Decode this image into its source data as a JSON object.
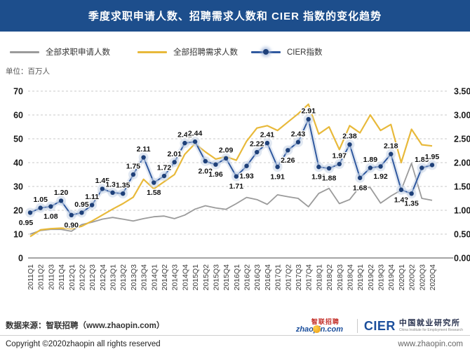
{
  "header": {
    "title": "季度求职申请人数、招聘需求人数和 CIER 指数的变化趋势"
  },
  "legend": [
    {
      "label": "全部求职申请人数",
      "color": "#9b9b9b"
    },
    {
      "label": "全部招聘需求人数",
      "color": "#e8b93a"
    },
    {
      "label": "CIER指数",
      "color": "#30599f",
      "dot_color": "#1e4079"
    }
  ],
  "unit_label": "单位：百万人",
  "chart_data": {
    "type": "line",
    "title": "季度求职申请人数、招聘需求人数和 CIER 指数的变化趋势",
    "categories": [
      "2011Q1",
      "2011Q2",
      "2011Q3",
      "2011Q4",
      "2012Q1",
      "2012Q2",
      "2012Q3",
      "2012Q4",
      "2013Q1",
      "2013Q2",
      "2013Q3",
      "2013Q4",
      "2014Q1",
      "2014Q2",
      "2014Q3",
      "2014Q4",
      "2015Q1",
      "2015Q2",
      "2015Q3",
      "2015Q4",
      "2016Q1",
      "2016Q2",
      "2016Q3",
      "2016Q4",
      "2017Q1",
      "2017Q2",
      "2017Q3",
      "2017Q4",
      "2018Q1",
      "2018Q2",
      "2018Q3",
      "2018Q4",
      "2019Q1",
      "2019Q2",
      "2019Q3",
      "2019Q4",
      "2020Q1",
      "2020Q2",
      "2020Q3",
      "2020Q4"
    ],
    "left_axis": {
      "min": 0,
      "max": 70,
      "step": 10,
      "unit": "百万人"
    },
    "right_axis": {
      "min": 0,
      "max": 3.5,
      "step": 0.5
    },
    "grid": "horizontal-dashed",
    "series": [
      {
        "name": "全部求职申请人数",
        "axis": "left",
        "color": "#9b9b9b",
        "values": [
          10.0,
          11.5,
          12.0,
          12.0,
          11.2,
          14.0,
          15.0,
          16.3,
          17.0,
          16.3,
          15.5,
          16.5,
          17.3,
          17.6,
          16.5,
          18.0,
          20.5,
          21.9,
          21.0,
          20.4,
          22.8,
          25.4,
          24.5,
          22.5,
          26.5,
          25.7,
          25.0,
          21.5,
          27.1,
          29.2,
          22.8,
          24.5,
          30.0,
          29.5,
          23.0,
          26.0,
          28.5,
          39.7,
          25.0,
          24.2
        ]
      },
      {
        "name": "全部招聘需求人数",
        "axis": "left",
        "color": "#e8b93a",
        "values": [
          9.0,
          11.8,
          12.3,
          12.5,
          12.3,
          13.3,
          15.5,
          18.0,
          20.5,
          22.8,
          25.5,
          33.0,
          29.0,
          32.0,
          35.0,
          43.5,
          48.0,
          44.5,
          41.5,
          42.5,
          41.0,
          49.0,
          54.5,
          55.5,
          53.5,
          57.0,
          60.5,
          64.5,
          52.0,
          55.0,
          45.5,
          55.5,
          52.5,
          60.0,
          53.5,
          56.0,
          40.0,
          54.0,
          47.5,
          47.0
        ]
      },
      {
        "name": "CIER指数",
        "axis": "right",
        "color": "#30599f",
        "dot_color": "#1e4079",
        "halo_color": "#c9d5e8",
        "values": [
          0.95,
          1.05,
          1.08,
          1.2,
          0.9,
          0.95,
          1.11,
          1.45,
          1.37,
          1.35,
          1.75,
          2.11,
          1.58,
          1.72,
          2.01,
          2.41,
          2.44,
          2.03,
          1.96,
          2.09,
          1.71,
          1.93,
          2.22,
          2.41,
          1.91,
          2.26,
          2.43,
          2.91,
          1.91,
          1.88,
          1.97,
          2.38,
          1.68,
          1.89,
          1.92,
          2.18,
          1.43,
          1.35,
          1.89,
          1.95
        ],
        "labels_visible": true,
        "label_side": [
          "b",
          "a",
          "b",
          "a",
          "b",
          "a",
          "a",
          "a",
          "a",
          "a",
          "a",
          "a",
          "b",
          "a",
          "a",
          "a",
          "a",
          "b",
          "b",
          "a",
          "b",
          "b",
          "a",
          "a",
          "b",
          "b",
          "a",
          "a",
          "b",
          "b",
          "a",
          "a",
          "b",
          "a",
          "b",
          "a",
          "b",
          "b",
          "a",
          "a"
        ]
      }
    ]
  },
  "footer": {
    "source": "数据来源：智联招聘（www.zhaopin.com）",
    "copyright": "Copyright ©2020zhaopin all rights reserved",
    "website": "www.zhaopin.com",
    "logos": {
      "zhaopin_text": "zhaopin.com",
      "zhaopin_cn": "智联招聘",
      "cier_abbr": "CIER",
      "cier_cn": "中国就业研究所",
      "cier_en": "China Institute for Employment Research"
    }
  }
}
